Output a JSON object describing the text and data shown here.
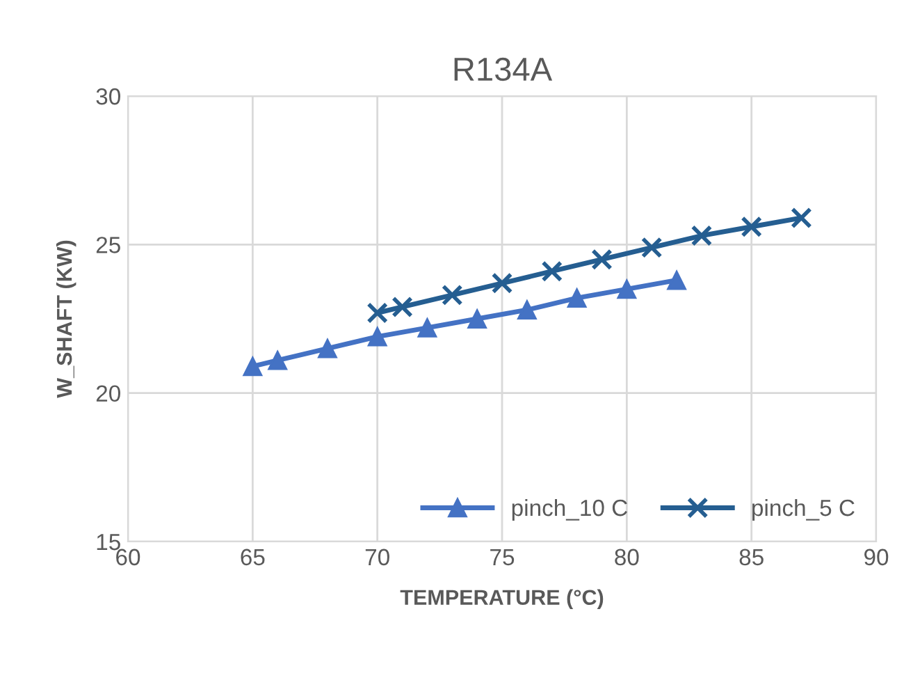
{
  "chart_data": {
    "type": "line",
    "title": "R134A",
    "xlabel": "TEMPERATURE (°C)",
    "ylabel": "W_SHAFT (KW)",
    "xlim": [
      60,
      90
    ],
    "xticks": [
      60,
      65,
      70,
      75,
      80,
      85,
      90
    ],
    "ylim": [
      15,
      30
    ],
    "yticks": [
      15,
      20,
      25,
      30
    ],
    "grid": true,
    "legend": "bottom right",
    "series": [
      {
        "name": "pinch_10 C",
        "color": "#4472c4",
        "marker": "triangle",
        "x": [
          65,
          66,
          68,
          70,
          72,
          74,
          76,
          78,
          80,
          82
        ],
        "values": [
          20.9,
          21.1,
          21.5,
          21.9,
          22.2,
          22.5,
          22.8,
          23.2,
          23.5,
          23.8
        ]
      },
      {
        "name": "pinch_5 C",
        "color": "#255e91",
        "marker": "cross",
        "x": [
          70,
          71,
          73,
          75,
          77,
          79,
          81,
          83,
          85,
          87
        ],
        "values": [
          22.7,
          22.9,
          23.3,
          23.7,
          24.1,
          24.5,
          24.9,
          25.3,
          25.6,
          25.9
        ]
      }
    ]
  }
}
